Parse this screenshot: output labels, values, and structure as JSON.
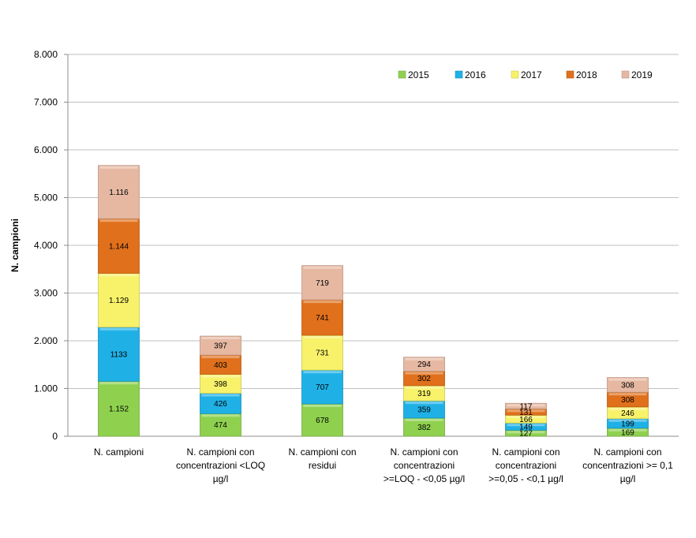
{
  "chart_data": {
    "type": "bar",
    "stacked": true,
    "title": "",
    "xlabel": "",
    "ylabel": "N. campioni",
    "ylim": [
      0,
      8000
    ],
    "y_ticks": [
      "0",
      "1.000",
      "2.000",
      "3.000",
      "4.000",
      "5.000",
      "6.000",
      "7.000",
      "8.000"
    ],
    "y_tick_values": [
      0,
      1000,
      2000,
      3000,
      4000,
      5000,
      6000,
      7000,
      8000
    ],
    "grid": true,
    "legend_position": "top-right",
    "categories": [
      [
        "N. campioni"
      ],
      [
        "N. campioni con",
        "concentrazioni <LOQ",
        "µg/l"
      ],
      [
        "N. campioni con",
        "residui"
      ],
      [
        "N. campioni con",
        "concentrazioni",
        ">=LOQ - <0,05 µg/l"
      ],
      [
        "N. campioni con",
        "concentrazioni",
        ">=0,05 - <0,1 µg/l"
      ],
      [
        "N. campioni con",
        "concentrazioni >= 0,1",
        "µg/l"
      ]
    ],
    "series": [
      {
        "name": "2015",
        "color": "#8fd14f",
        "values": [
          1152,
          474,
          678,
          382,
          127,
          169
        ],
        "labels": [
          "1.152",
          "474",
          "678",
          "382",
          "127",
          "169"
        ]
      },
      {
        "name": "2016",
        "color": "#1fb1e6",
        "values": [
          1133,
          426,
          707,
          359,
          149,
          199
        ],
        "labels": [
          "1133",
          "426",
          "707",
          "359",
          "149",
          "199"
        ]
      },
      {
        "name": "2017",
        "color": "#f7f26a",
        "values": [
          1129,
          398,
          731,
          319,
          166,
          246
        ],
        "labels": [
          "1.129",
          "398",
          "731",
          "319",
          "166",
          "246"
        ]
      },
      {
        "name": "2018",
        "color": "#e0701c",
        "values": [
          1144,
          403,
          741,
          302,
          131,
          308
        ],
        "labels": [
          "1.144",
          "403",
          "741",
          "302",
          "131",
          "308"
        ]
      },
      {
        "name": "2019",
        "color": "#e6b8a2",
        "values": [
          1116,
          397,
          719,
          294,
          117,
          308
        ],
        "labels": [
          "1.116",
          "397",
          "719",
          "294",
          "117",
          "308"
        ]
      }
    ]
  }
}
